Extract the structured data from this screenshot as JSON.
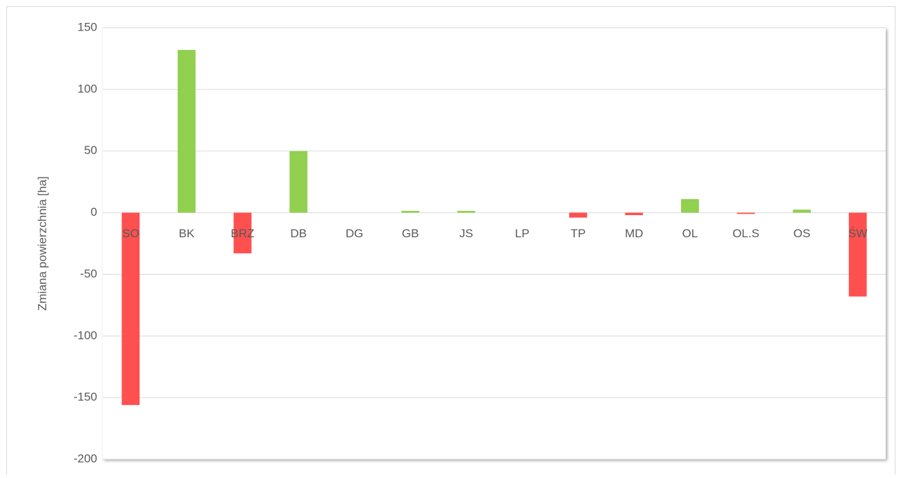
{
  "chart_data": {
    "type": "bar",
    "y_axis_label": "Zmiana powierzchnia [ha]",
    "categories": [
      "SO",
      "BK",
      "BRZ",
      "DB",
      "DG",
      "GB",
      "JS",
      "LP",
      "TP",
      "MD",
      "OL",
      "OL.S",
      "OS",
      "ŚW"
    ],
    "values": [
      -156,
      132,
      -33,
      50,
      0,
      1.5,
      1.5,
      0,
      -4,
      -2,
      11,
      -1,
      2.5,
      -68
    ],
    "colors": [
      "#ff5050",
      "#92d050",
      "#ff5050",
      "#92d050",
      "#92d050",
      "#92d050",
      "#92d050",
      "#92d050",
      "#ff5050",
      "#ff5050",
      "#92d050",
      "#ff5050",
      "#92d050",
      "#ff5050"
    ],
    "ylim": [
      -200,
      150
    ],
    "yticks": [
      -200,
      -150,
      -100,
      -50,
      0,
      50,
      100,
      150
    ],
    "grid": true
  }
}
